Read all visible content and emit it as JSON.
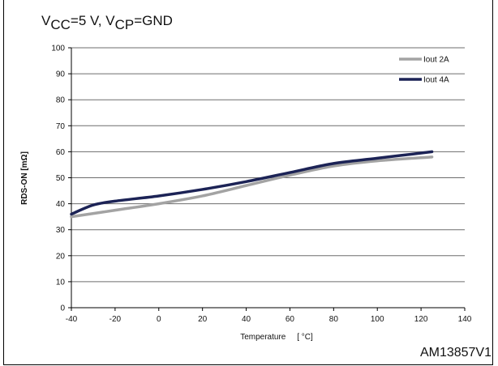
{
  "figure": {
    "condition": {
      "vcc_symbol": "V",
      "vcc_sub": "CC",
      "vcc_value": "=5 V, ",
      "vcp_symbol": "V",
      "vcp_sub": "CP",
      "vcp_value": "=GND"
    },
    "figure_id": "AM13857V1"
  },
  "chart_data": {
    "type": "line",
    "xlabel": "Temperature     [ °C]",
    "ylabel": "RDS-ON [mΩ]",
    "xlim": [
      -40,
      140
    ],
    "ylim": [
      0,
      100
    ],
    "xticks": [
      -40,
      -20,
      0,
      20,
      40,
      60,
      80,
      100,
      120,
      140
    ],
    "yticks": [
      0,
      10,
      20,
      30,
      40,
      50,
      60,
      70,
      80,
      90,
      100
    ],
    "grid": "horizontal",
    "legend": "top-right",
    "series": [
      {
        "name": "Iout 2A",
        "color": "#a3a3a3",
        "x": [
          -40,
          -20,
          0,
          20,
          40,
          60,
          80,
          100,
          125
        ],
        "y": [
          35,
          37.5,
          40,
          43,
          47,
          51,
          54.5,
          56.5,
          58
        ]
      },
      {
        "name": "Iout 4A",
        "color": "#1c2356",
        "x": [
          -40,
          -30,
          -20,
          0,
          20,
          40,
          60,
          80,
          100,
          125
        ],
        "y": [
          36,
          39.5,
          41,
          43,
          45.5,
          48.5,
          52,
          55.5,
          57.5,
          60
        ]
      }
    ]
  }
}
